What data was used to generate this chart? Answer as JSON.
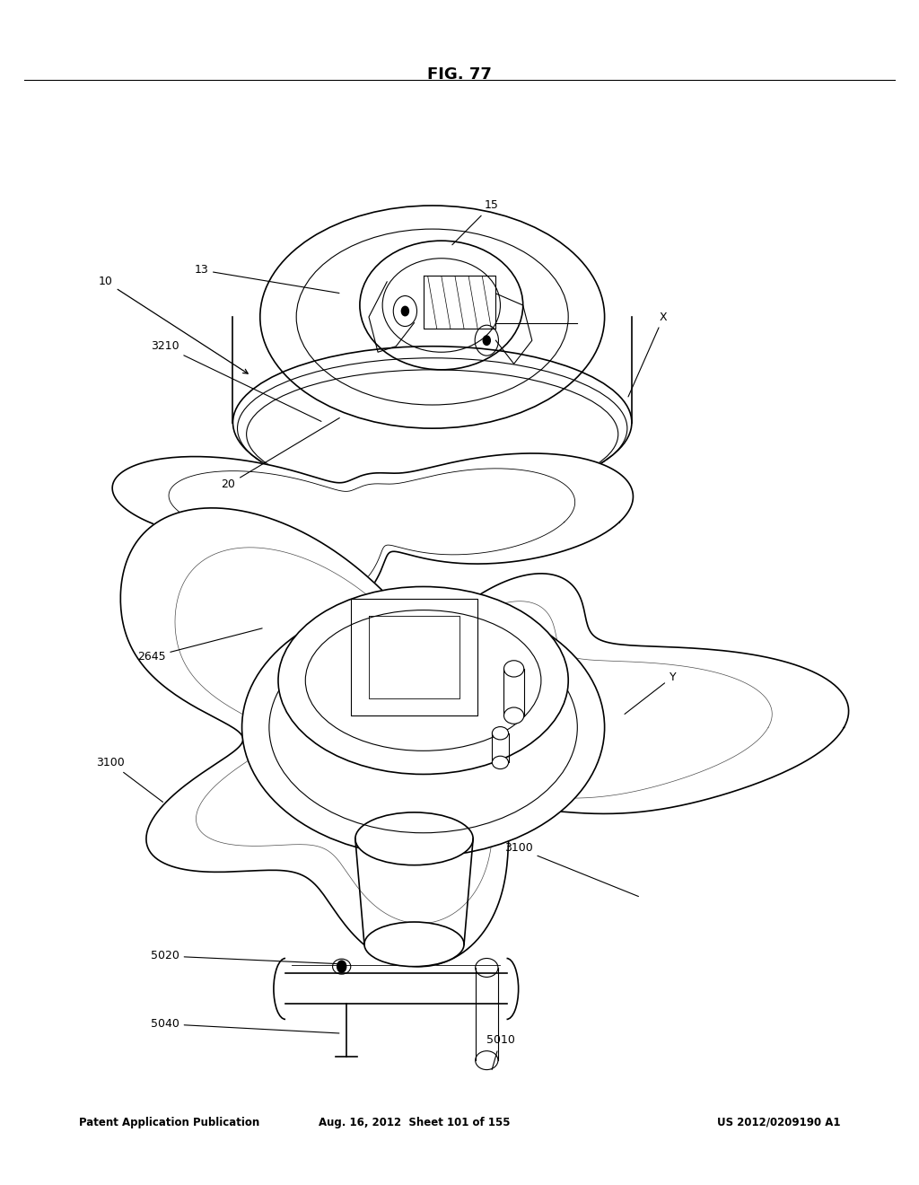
{
  "header_left": "Patent Application Publication",
  "header_mid": "Aug. 16, 2012  Sheet 101 of 155",
  "header_right": "US 2012/0209190 A1",
  "figure_label": "FIG. 77",
  "background_color": "#ffffff",
  "line_color": "#000000"
}
